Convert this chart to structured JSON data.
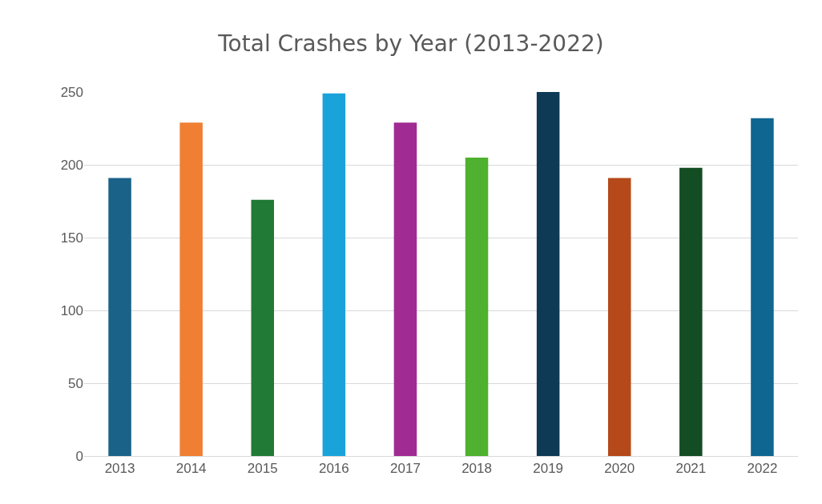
{
  "chart_data": {
    "type": "bar",
    "title": "Total Crashes by Year (2013-2022)",
    "categories": [
      "2013",
      "2014",
      "2015",
      "2016",
      "2017",
      "2018",
      "2019",
      "2020",
      "2021",
      "2022"
    ],
    "values": [
      191,
      229,
      176,
      249,
      229,
      205,
      250,
      191,
      198,
      232
    ],
    "colors": [
      "#1b6289",
      "#f07f34",
      "#217a35",
      "#1aa3db",
      "#a02b93",
      "#4eb12f",
      "#0e3a55",
      "#b5491a",
      "#144d23",
      "#0f6690"
    ],
    "ylim": [
      0,
      250
    ],
    "yticks": [
      0,
      50,
      100,
      150,
      200,
      250
    ],
    "grid": "y"
  }
}
